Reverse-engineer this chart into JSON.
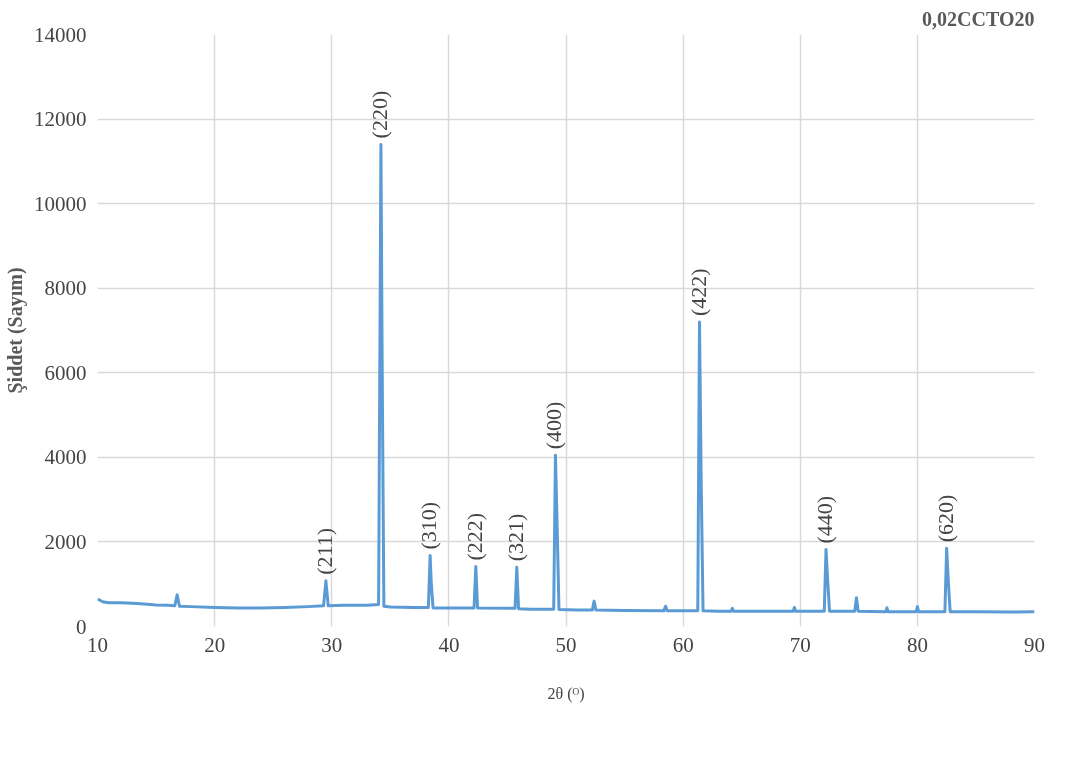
{
  "chart_data": {
    "type": "line",
    "title": "0,02CCTO20",
    "xlabel": "2θ (ᴼ)",
    "ylabel": "Şiddet (Sayım)",
    "xlim": [
      10,
      90
    ],
    "ylim": [
      0,
      14000
    ],
    "xticks": [
      10,
      20,
      30,
      40,
      50,
      60,
      70,
      80,
      90
    ],
    "yticks": [
      0,
      2000,
      4000,
      6000,
      8000,
      10000,
      12000,
      14000
    ],
    "grid": true,
    "marker": "none",
    "line_style": "solid",
    "series": [
      {
        "color": "#5b9bd5",
        "x": [
          10,
          10.5,
          11,
          12,
          13,
          14,
          15,
          16,
          16.6,
          16.8,
          17,
          18,
          20,
          22,
          24,
          26,
          28,
          29.3,
          29.5,
          29.7,
          31,
          33,
          34.0,
          34.2,
          34.3,
          34.45,
          35,
          37,
          38.25,
          38.4,
          38.5,
          38.65,
          40,
          42.15,
          42.3,
          42.45,
          45.65,
          45.8,
          45.95,
          47,
          48.95,
          49.1,
          49.25,
          49.4,
          51,
          52.25,
          52.4,
          52.55,
          55,
          58.35,
          58.5,
          58.65,
          60,
          61.25,
          61.4,
          61.55,
          61.7,
          63,
          64.1,
          64.2,
          64.3,
          67,
          69.4,
          69.5,
          69.6,
          72.05,
          72.2,
          72.35,
          72.5,
          74.65,
          74.8,
          74.95,
          77.3,
          77.4,
          77.5,
          79.9,
          80,
          80.1,
          82.35,
          82.5,
          82.65,
          82.8,
          85,
          88,
          90
        ],
        "values": [
          650,
          580,
          560,
          560,
          550,
          530,
          510,
          500,
          490,
          750,
          480,
          470,
          450,
          440,
          440,
          450,
          470,
          490,
          1080,
          490,
          500,
          500,
          520,
          11400,
          6400,
          480,
          460,
          450,
          450,
          1680,
          1000,
          440,
          440,
          440,
          1420,
          440,
          430,
          1400,
          420,
          410,
          410,
          4050,
          2300,
          400,
          390,
          390,
          600,
          390,
          380,
          370,
          480,
          370,
          370,
          370,
          7200,
          3250,
          370,
          360,
          360,
          430,
          360,
          360,
          360,
          450,
          360,
          360,
          1820,
          1050,
          360,
          360,
          680,
          360,
          350,
          440,
          350,
          350,
          470,
          350,
          350,
          1850,
          1020,
          350,
          350,
          340,
          350
        ]
      }
    ],
    "annotations": [
      {
        "text": "(211)",
        "x": 29.5,
        "y": 1080
      },
      {
        "text": "(220)",
        "x": 34.2,
        "y": 11400
      },
      {
        "text": "(310)",
        "x": 38.4,
        "y": 1680
      },
      {
        "text": "(222)",
        "x": 42.3,
        "y": 1420
      },
      {
        "text": "(321)",
        "x": 45.8,
        "y": 1400
      },
      {
        "text": "(400)",
        "x": 49.1,
        "y": 4050
      },
      {
        "text": "(422)",
        "x": 61.4,
        "y": 7200
      },
      {
        "text": "(440)",
        "x": 72.2,
        "y": 1820
      },
      {
        "text": "(620)",
        "x": 82.5,
        "y": 1850
      }
    ]
  }
}
